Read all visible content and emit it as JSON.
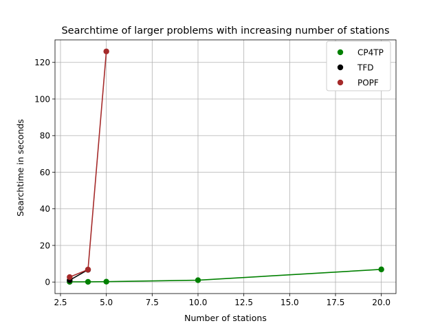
{
  "chart_data": {
    "type": "line",
    "title": "Searchtime of larger problems with increasing number of stations",
    "xlabel": "Number of stations",
    "ylabel": "Searchtime in seconds",
    "xlim": [
      2.2,
      20.8
    ],
    "ylim": [
      -6.3,
      132.3
    ],
    "xticks": [
      2.5,
      5.0,
      7.5,
      10.0,
      12.5,
      15.0,
      17.5,
      20.0
    ],
    "xtick_labels": [
      "2.5",
      "5.0",
      "7.5",
      "10.0",
      "12.5",
      "15.0",
      "17.5",
      "20.0"
    ],
    "yticks": [
      0,
      20,
      40,
      60,
      80,
      100,
      120
    ],
    "ytick_labels": [
      "0",
      "20",
      "40",
      "60",
      "80",
      "100",
      "120"
    ],
    "grid": true,
    "legend_position": "top-right",
    "series": [
      {
        "name": "CP4TP",
        "color": "#008000",
        "x": [
          3,
          4,
          5,
          10,
          20
        ],
        "y": [
          0.1,
          0.1,
          0.2,
          1.0,
          6.9
        ]
      },
      {
        "name": "TFD",
        "color": "#000000",
        "x": [
          3,
          4
        ],
        "y": [
          1.0,
          6.7
        ]
      },
      {
        "name": "POPF",
        "color": "#a52a2a",
        "x": [
          3,
          4,
          5
        ],
        "y": [
          2.7,
          6.8,
          126.0
        ]
      }
    ]
  }
}
